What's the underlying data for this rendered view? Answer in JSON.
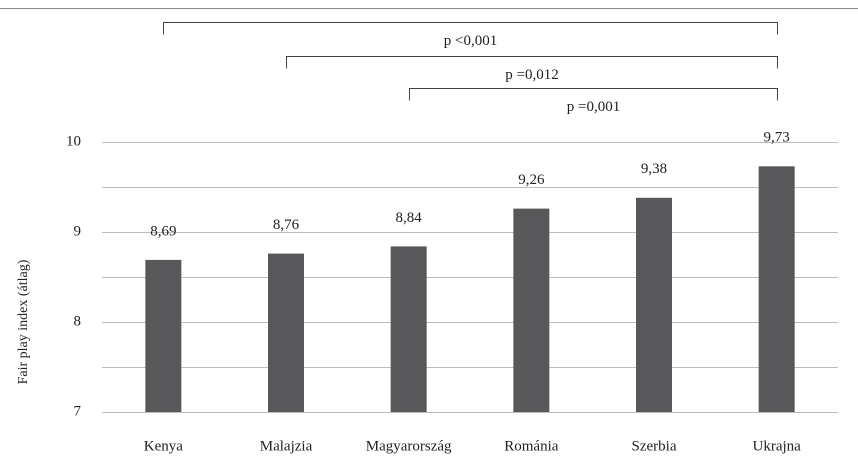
{
  "chart_data": {
    "type": "bar",
    "ylabel": "Fair play index (átlag)",
    "ylim": [
      7,
      10
    ],
    "yticks": [
      7,
      8,
      9,
      10
    ],
    "grid": "horizontal",
    "minor_gridlines": [
      7.5,
      8.5,
      9.5
    ],
    "categories": [
      "Kenya",
      "Malajzia",
      "Magyarország",
      "Románia",
      "Szerbia",
      "Ukrajna"
    ],
    "values": [
      8.69,
      8.76,
      8.84,
      9.26,
      9.38,
      9.73
    ],
    "value_labels": [
      "8,69",
      "8,76",
      "8,84",
      "9,26",
      "9,38",
      "9,73"
    ],
    "bar_color": "#58585a",
    "grid_color": "#bdbdbd",
    "annotations": [
      {
        "from": "Kenya",
        "to": "Ukrajna",
        "label": "p <0,001"
      },
      {
        "from": "Malajzia",
        "to": "Ukrajna",
        "label": "p =0,012"
      },
      {
        "from": "Magyarország",
        "to": "Ukrajna",
        "label": "p =0,001"
      }
    ]
  }
}
